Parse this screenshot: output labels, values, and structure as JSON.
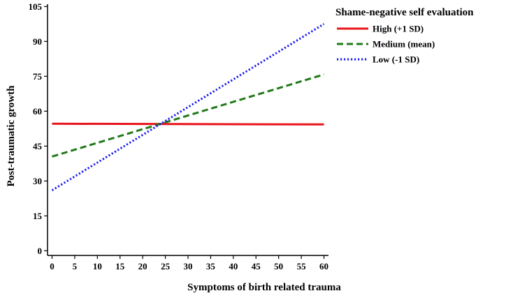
{
  "chart_data": {
    "type": "line",
    "title": "",
    "xlabel": "Symptoms of birth related trauma",
    "ylabel": "Post-traumatic growth",
    "xlim": [
      -1,
      61
    ],
    "ylim": [
      -2,
      106
    ],
    "x_ticks": [
      0,
      5,
      10,
      15,
      20,
      25,
      30,
      35,
      40,
      45,
      50,
      55,
      60
    ],
    "y_ticks": [
      0,
      15,
      30,
      45,
      60,
      75,
      90,
      105
    ],
    "grid": false,
    "legend": {
      "title": "Shame-negative self evaluation",
      "position": "top-right-outside"
    },
    "series": [
      {
        "name": "High (+1 SD)",
        "color": "#e8141b",
        "style": "solid",
        "x": [
          0,
          60
        ],
        "y": [
          54.6,
          54.3
        ]
      },
      {
        "name": "Medium (mean)",
        "color": "#1f7a17",
        "style": "dashed",
        "x": [
          0,
          60
        ],
        "y": [
          40.5,
          75.8
        ]
      },
      {
        "name": "Low (-1 SD)",
        "color": "#1c1cf0",
        "style": "dotted",
        "x": [
          0,
          60
        ],
        "y": [
          26.0,
          97.5
        ]
      }
    ]
  }
}
